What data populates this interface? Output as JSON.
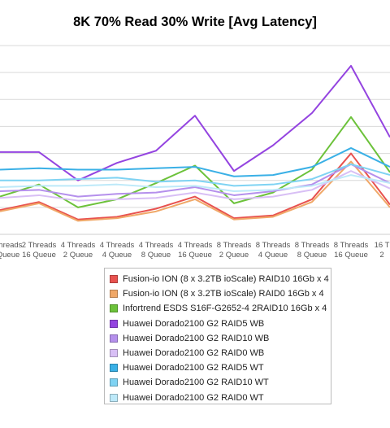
{
  "chart_data": {
    "type": "line",
    "title": "8K 70% Read 30% Write [Avg Latency]",
    "xlabel": "",
    "ylabel": "",
    "grid": true,
    "legend_position": "bottom",
    "x_labels_visible": [
      [
        "Threads",
        "Queue"
      ],
      [
        "2 Threads",
        "16 Queue"
      ],
      [
        "4 Threads",
        "2 Queue"
      ],
      [
        "4 Threads",
        "4 Queue"
      ],
      [
        "4 Threads",
        "8 Queue"
      ],
      [
        "4 Threads",
        "16 Queue"
      ],
      [
        "8 Threads",
        "2 Queue"
      ],
      [
        "8 Threads",
        "4 Queue"
      ],
      [
        "8 Threads",
        "8 Queue"
      ],
      [
        "8 Threads",
        "16 Queue"
      ],
      [
        "16 T",
        "2"
      ]
    ],
    "series": [
      {
        "name": "Fusion-io ION (8 x 3.2TB ioScale) RAID10 16Gb x 4",
        "color": "#e8524f",
        "values": [
          0.9,
          1.2,
          0.55,
          0.65,
          0.95,
          1.4,
          0.6,
          0.7,
          1.3,
          3.0,
          1.1
        ]
      },
      {
        "name": "Fusion-io ION (8 x 3.2TB ioScale) RAID0 16Gb x 4",
        "color": "#f0a868",
        "values": [
          0.85,
          1.15,
          0.5,
          0.6,
          0.85,
          1.3,
          0.55,
          0.65,
          1.2,
          2.7,
          1.0
        ]
      },
      {
        "name": "Infortrend ESDS S16F-G2652-4 2RAID10 16Gb x 4",
        "color": "#6cc23a",
        "values": [
          1.4,
          1.85,
          1.0,
          1.3,
          1.9,
          2.55,
          1.15,
          1.55,
          2.4,
          4.35,
          2.3
        ]
      },
      {
        "name": "Huawei Dorado2100 G2 RAID5 WB",
        "color": "#9444e0",
        "values": [
          3.05,
          3.05,
          2.0,
          2.65,
          3.1,
          4.4,
          2.35,
          3.3,
          4.5,
          6.25,
          3.6
        ]
      },
      {
        "name": "Huawei Dorado2100 G2 RAID10 WB",
        "color": "#b590ec",
        "values": [
          1.6,
          1.65,
          1.4,
          1.5,
          1.55,
          1.75,
          1.45,
          1.6,
          1.85,
          2.6,
          1.9
        ]
      },
      {
        "name": "Huawei Dorado2100 G2 RAID0 WB",
        "color": "#d8bff5",
        "values": [
          1.35,
          1.45,
          1.25,
          1.3,
          1.35,
          1.55,
          1.3,
          1.4,
          1.65,
          2.35,
          1.7
        ]
      },
      {
        "name": "Huawei Dorado2100 G2 RAID5 WT",
        "color": "#3ab0e6",
        "values": [
          2.4,
          2.45,
          2.4,
          2.4,
          2.45,
          2.5,
          2.15,
          2.2,
          2.5,
          3.2,
          2.5
        ]
      },
      {
        "name": "Huawei Dorado2100 G2 RAID10 WT",
        "color": "#7fd3f3",
        "values": [
          2.0,
          2.0,
          2.05,
          2.1,
          1.95,
          2.0,
          1.8,
          1.85,
          2.05,
          2.6,
          2.2
        ]
      },
      {
        "name": "Huawei Dorado2100 G2 RAID0 WT",
        "color": "#bde9f9",
        "values": [
          1.75,
          1.8,
          1.8,
          1.85,
          1.75,
          1.8,
          1.6,
          1.65,
          1.8,
          2.2,
          1.9
        ]
      }
    ]
  }
}
